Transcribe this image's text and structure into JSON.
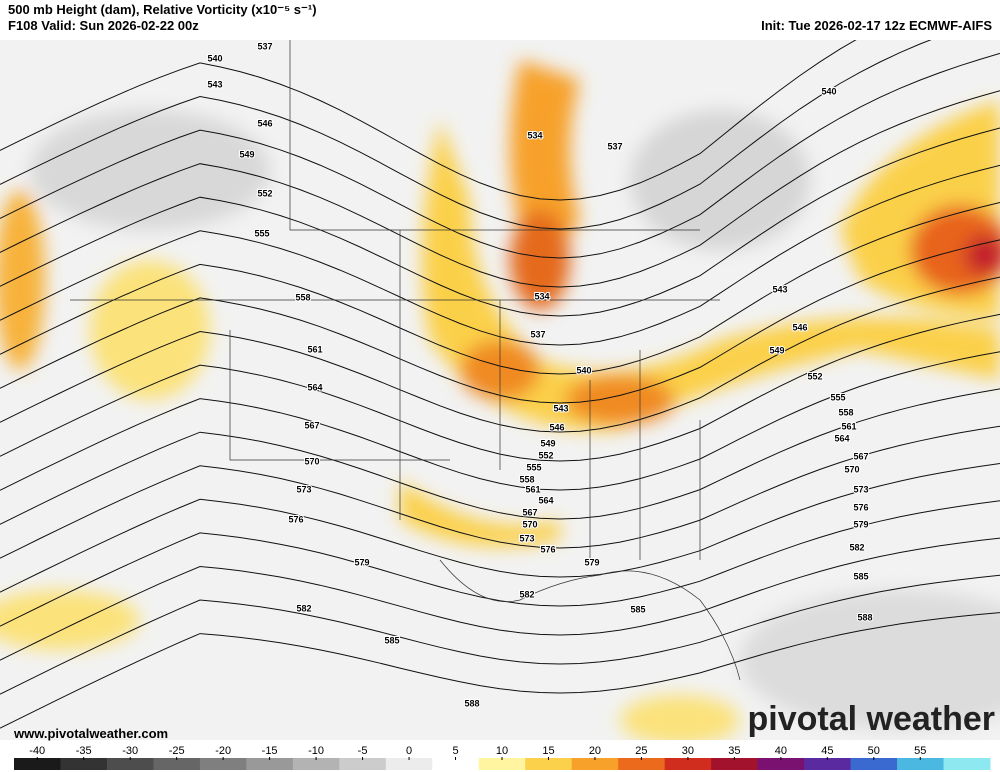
{
  "header": {
    "title": "500 mb Height (dam), Relative Vorticity (x10⁻⁵ s⁻¹)",
    "valid": "F108 Valid: Sun 2026-02-22 00z",
    "init": "Init: Tue 2026-02-17 12z ECMWF-AIFS"
  },
  "contour_labels": [
    "537",
    "540",
    "543",
    "546",
    "549",
    "552",
    "555",
    "558",
    "561",
    "564",
    "567",
    "570",
    "573",
    "576",
    "579",
    "582",
    "585",
    "588",
    "534",
    "537",
    "534",
    "537",
    "540",
    "543",
    "546",
    "549",
    "552",
    "555",
    "558",
    "561",
    "564",
    "567",
    "570",
    "573",
    "576",
    "579",
    "582",
    "585",
    "540",
    "543",
    "546",
    "549",
    "552",
    "555",
    "558",
    "561",
    "564",
    "567",
    "570",
    "573",
    "576",
    "579",
    "582",
    "585",
    "588"
  ],
  "footer": {
    "url": "www.pivotalweather.com",
    "logo": "pivotal weather"
  },
  "colorbar": {
    "ticks": [
      -40,
      -35,
      -30,
      -25,
      -20,
      -15,
      -10,
      -5,
      0,
      5,
      10,
      15,
      20,
      25,
      30,
      35,
      40,
      45,
      50,
      55
    ],
    "colors": [
      "#1a1a1a",
      "#333333",
      "#4d4d4d",
      "#666666",
      "#7f7f7f",
      "#999999",
      "#b3b3b3",
      "#cccccc",
      "#ececec",
      "#ffffff",
      "#fff4a0",
      "#fbd04a",
      "#f7a12a",
      "#ec6a1c",
      "#d12d1f",
      "#a3122d",
      "#7a1070",
      "#5a2aa0",
      "#3a6ad0",
      "#4ab8e0",
      "#8ee8f0"
    ]
  }
}
